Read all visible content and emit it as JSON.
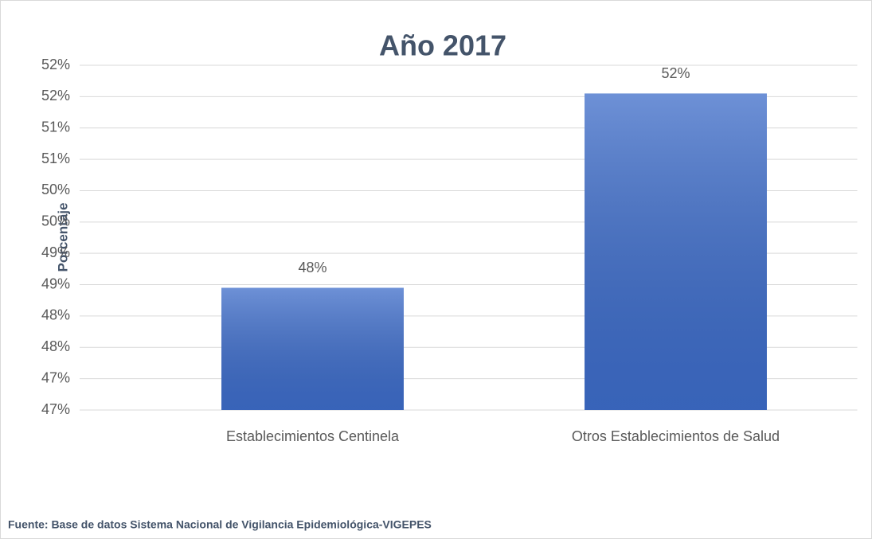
{
  "chart_data": {
    "type": "bar",
    "title": "Año 2017",
    "ylabel": "Porcentaje",
    "categories": [
      "Establecimientos Centinela",
      "Otros Establecimientos de Salud"
    ],
    "values": [
      48.45,
      51.55
    ],
    "value_labels": [
      "48%",
      "52%"
    ],
    "color": "#3d6cc9",
    "ylim": [
      46.5,
      52
    ],
    "yticks": [
      {
        "value": 46.5,
        "label": "47%"
      },
      {
        "value": 47,
        "label": "47%"
      },
      {
        "value": 47.5,
        "label": "48%"
      },
      {
        "value": 48,
        "label": "48%"
      },
      {
        "value": 48.5,
        "label": "49%"
      },
      {
        "value": 49,
        "label": "49%"
      },
      {
        "value": 49.5,
        "label": "50%"
      },
      {
        "value": 50,
        "label": "50%"
      },
      {
        "value": 50.5,
        "label": "51%"
      },
      {
        "value": 51,
        "label": "51%"
      },
      {
        "value": 51.5,
        "label": "52%"
      },
      {
        "value": 52,
        "label": "52%"
      }
    ],
    "grid": true,
    "source": "Fuente: Base de datos Sistema Nacional de Vigilancia Epidemiológica-VIGEPES"
  }
}
